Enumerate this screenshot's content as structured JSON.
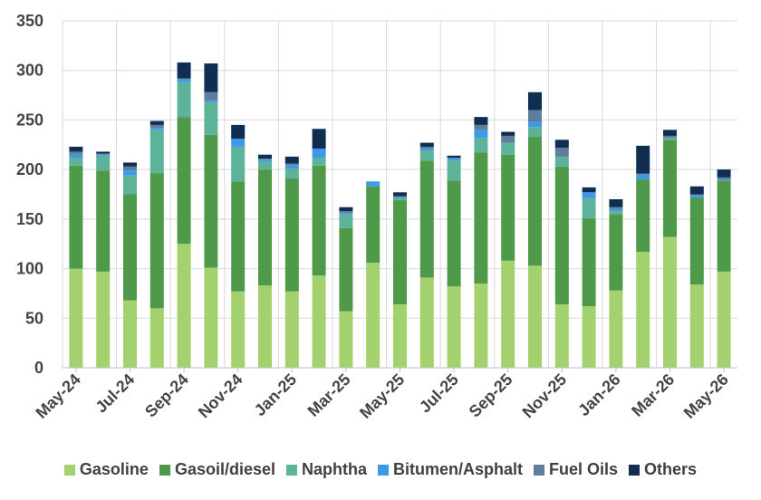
{
  "chart_data": {
    "type": "bar",
    "stacked": true,
    "title": "",
    "xlabel": "",
    "ylabel": "",
    "ylim": [
      0,
      350
    ],
    "yticks": [
      0,
      50,
      100,
      150,
      200,
      250,
      300,
      350
    ],
    "grid": true,
    "legend_position": "bottom",
    "categories": [
      "May-24",
      "Jun-24",
      "Jul-24",
      "Aug-24",
      "Sep-24",
      "Oct-24",
      "Nov-24",
      "Dec-24",
      "Jan-25",
      "Feb-25",
      "Mar-25",
      "Apr-25",
      "May-25",
      "Jun-25",
      "Jul-25",
      "Aug-25",
      "Sep-25",
      "Oct-25",
      "Nov-25",
      "Dec-25",
      "Jan-26",
      "Feb-26",
      "Mar-26",
      "Apr-26",
      "May-26"
    ],
    "x_tick_labels": [
      "May-24",
      "Jul-24",
      "Sep-24",
      "Nov-24",
      "Jan-25",
      "Mar-25",
      "May-25",
      "Jul-25",
      "Sep-25",
      "Nov-25",
      "Jan-26",
      "Mar-26",
      "May-26"
    ],
    "series": [
      {
        "name": "Gasoline",
        "color": "#a3d16e",
        "values": [
          100,
          97,
          68,
          60,
          125,
          101,
          77,
          83,
          77,
          93,
          57,
          106,
          64,
          91,
          82,
          85,
          108,
          103,
          64,
          62,
          78,
          117,
          132,
          84,
          97
        ]
      },
      {
        "name": "Gasoil/diesel",
        "color": "#4e9a4a",
        "values": [
          104,
          102,
          107,
          136,
          128,
          134,
          111,
          117,
          114,
          111,
          84,
          77,
          105,
          118,
          107,
          132,
          107,
          130,
          139,
          89,
          77,
          73,
          98,
          88,
          92
        ]
      },
      {
        "name": "Naphtha",
        "color": "#5db39a",
        "values": [
          8,
          15,
          19,
          44,
          35,
          33,
          35,
          8,
          10,
          8,
          14,
          0,
          2,
          10,
          20,
          15,
          12,
          10,
          10,
          20,
          3,
          0,
          2,
          0,
          0
        ]
      },
      {
        "name": "Bitumen/Asphalt",
        "color": "#3d9ae8",
        "values": [
          3,
          1,
          5,
          2,
          3,
          2,
          8,
          2,
          3,
          9,
          1,
          5,
          1,
          2,
          2,
          8,
          0,
          5,
          0,
          6,
          2,
          5,
          0,
          2,
          1
        ]
      },
      {
        "name": "Fuel Oils",
        "color": "#5e7e9e",
        "values": [
          3,
          1,
          4,
          3,
          1,
          8,
          0,
          1,
          2,
          0,
          2,
          0,
          1,
          2,
          1,
          5,
          7,
          12,
          9,
          0,
          2,
          1,
          2,
          1,
          2
        ]
      },
      {
        "name": "Others",
        "color": "#0f2e52",
        "values": [
          5,
          2,
          4,
          4,
          16,
          29,
          14,
          4,
          7,
          20,
          4,
          0,
          4,
          4,
          2,
          8,
          4,
          18,
          8,
          5,
          8,
          28,
          6,
          8,
          8
        ]
      }
    ]
  }
}
